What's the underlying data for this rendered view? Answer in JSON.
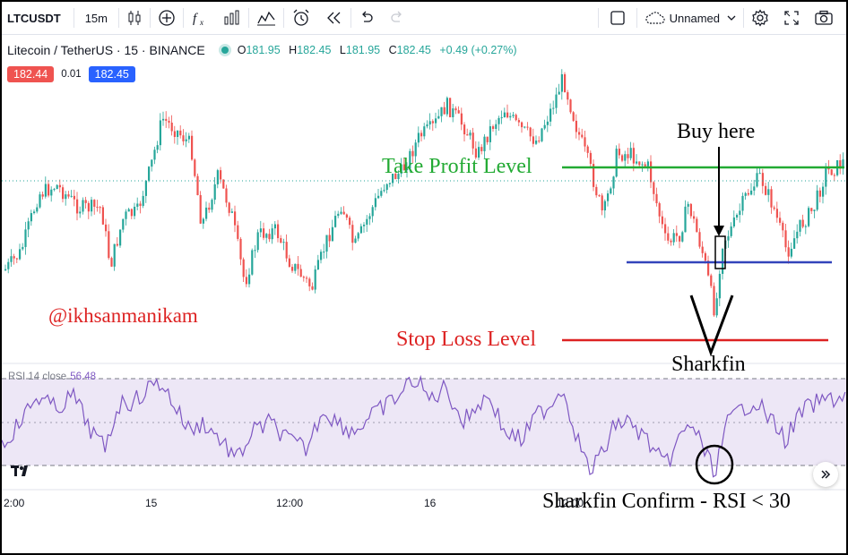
{
  "toolbar": {
    "symbol": "LTCUSDT",
    "interval": "15m",
    "layout_name": "Unnamed"
  },
  "legend": {
    "title": "Litecoin / TetherUS · 15 · BINANCE",
    "open": "181.95",
    "high": "182.45",
    "low": "181.95",
    "close": "182.45",
    "change": "+0.49 (+0.27%)",
    "o_label": "O",
    "h_label": "H",
    "l_label": "L",
    "c_label": "C"
  },
  "price_tags": {
    "bid": "182.44",
    "spread": "0.01",
    "ask": "182.45"
  },
  "rsi": {
    "label": "RSI 14 close",
    "value": "56.48"
  },
  "time_axis": {
    "labels": [
      "2:00",
      "15",
      "12:00",
      "16",
      "12:00"
    ]
  },
  "annotations": {
    "watermark": "@ikhsanmanikam",
    "take_profit": "Take Profit Level",
    "stop_loss": "Stop Loss Level",
    "buy_here": "Buy here",
    "sharkfin": "Sharkfin",
    "sharkfin_confirm": "Sharkfin Confirm - RSI < 30"
  },
  "colors": {
    "up": "#26a69a",
    "down": "#ef5350",
    "take_profit": "#22aa33",
    "stop_loss": "#dd2222",
    "entry_line": "#3344bb",
    "rsi_line": "#7e57c2",
    "rsi_band": "#ede7f6"
  },
  "icons": [
    "candles-icon",
    "plus-circle-icon",
    "fx-icon",
    "bar-chart-icon",
    "templates-icon",
    "alarm-icon",
    "replay-icon",
    "undo-icon",
    "redo-icon",
    "square-icon",
    "cloud-icon",
    "chevron-down-icon",
    "gear-icon",
    "fullscreen-icon",
    "camera-icon"
  ]
}
